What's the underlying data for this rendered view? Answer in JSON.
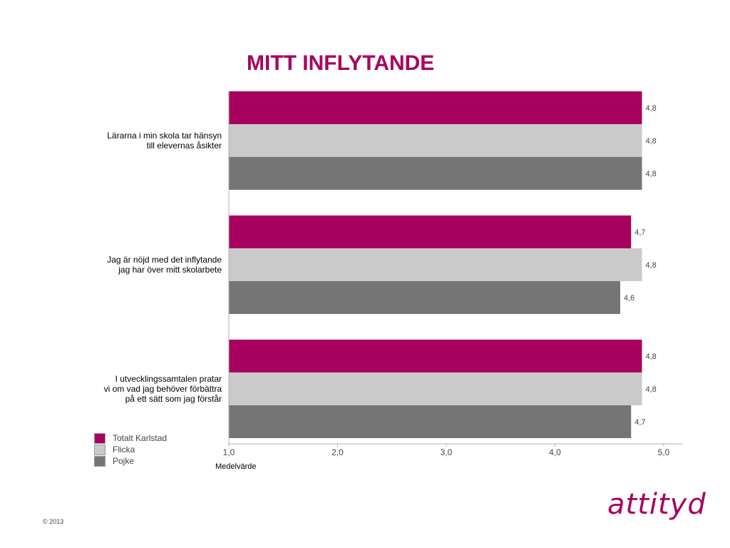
{
  "page": {
    "title": "MITT INFLYTANDE",
    "copyright": "© 2013",
    "logo_text": "attityd"
  },
  "colors": {
    "title": "#a8005f",
    "logo": "#a8005f",
    "series": [
      "#a8005f",
      "#cacaca",
      "#757575"
    ],
    "axis": "#b0b0b0",
    "value_label": "#444444"
  },
  "chart_data": {
    "type": "bar",
    "orientation": "horizontal",
    "categories": [
      [
        "Lärarna i min skola tar hänsyn",
        "till elevernas åsikter"
      ],
      [
        "Jag är nöjd med det inflytande",
        "jag har över mitt skolarbete"
      ],
      [
        "I utvecklingssamtalen pratar",
        "vi om vad jag behöver förbättra",
        "på ett sätt som jag förstår"
      ]
    ],
    "series": [
      {
        "name": "Totalt Karlstad",
        "values": [
          4.8,
          4.7,
          4.8
        ],
        "labels": [
          "4,8",
          "4,7",
          "4,8"
        ]
      },
      {
        "name": "Flicka",
        "values": [
          4.8,
          4.8,
          4.8
        ],
        "labels": [
          "4,8",
          "4,8",
          "4,8"
        ]
      },
      {
        "name": "Pojke",
        "values": [
          4.8,
          4.6,
          4.7
        ],
        "labels": [
          "4,8",
          "4,6",
          "4,7"
        ]
      }
    ],
    "xlim": [
      1.0,
      5.0
    ],
    "xticks": [
      1.0,
      2.0,
      3.0,
      4.0,
      5.0
    ],
    "xtick_labels": [
      "1,0",
      "2,0",
      "3,0",
      "4,0",
      "5,0"
    ],
    "xlabel": "Medelvärde",
    "legend_position": "bottom-left",
    "grid": false
  }
}
